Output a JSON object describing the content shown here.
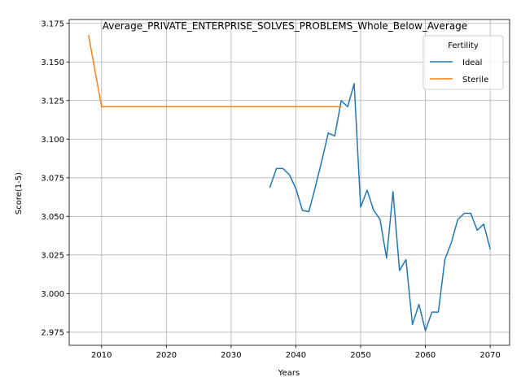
{
  "chart_data": {
    "type": "line",
    "title": "Average_PRIVATE_ENTERPRISE_SOLVES_PROBLEMS_Whole_Below_Average",
    "xlabel": "Years",
    "ylabel": "Score(1-5)",
    "xlim": [
      2005,
      2073
    ],
    "ylim": [
      2.9665,
      3.1775
    ],
    "x_ticks": [
      2010,
      2020,
      2030,
      2040,
      2050,
      2060,
      2070
    ],
    "y_ticks": [
      2.975,
      3.0,
      3.025,
      3.05,
      3.075,
      3.1,
      3.125,
      3.15,
      3.175
    ],
    "y_tick_labels": [
      "2.975",
      "3.000",
      "3.025",
      "3.050",
      "3.075",
      "3.100",
      "3.125",
      "3.150",
      "3.175"
    ],
    "grid": true,
    "legend": {
      "title": "Fertility",
      "placement": "top-right"
    },
    "series": [
      {
        "name": "Ideal",
        "color": "#1f77b4",
        "x": [
          2036,
          2037,
          2038,
          2039,
          2040,
          2041,
          2042,
          2043,
          2044,
          2045,
          2046,
          2047,
          2048,
          2049,
          2050,
          2051,
          2052,
          2053,
          2054,
          2055,
          2056,
          2057,
          2058,
          2059,
          2060,
          2061,
          2062,
          2063,
          2064,
          2065,
          2066,
          2067,
          2068,
          2069,
          2070
        ],
        "y": [
          3.069,
          3.081,
          3.081,
          3.077,
          3.068,
          3.054,
          3.053,
          3.069,
          3.086,
          3.104,
          3.102,
          3.125,
          3.121,
          3.136,
          3.056,
          3.067,
          3.054,
          3.048,
          3.023,
          3.066,
          3.015,
          3.022,
          2.98,
          2.993,
          2.976,
          2.988,
          2.988,
          3.022,
          3.033,
          3.048,
          3.052,
          3.052,
          3.041,
          3.045,
          3.029
        ]
      },
      {
        "name": "Sterile",
        "color": "#ff7f0e",
        "x": [
          2008,
          2010,
          2047
        ],
        "y": [
          3.167,
          3.121,
          3.121
        ]
      }
    ]
  }
}
